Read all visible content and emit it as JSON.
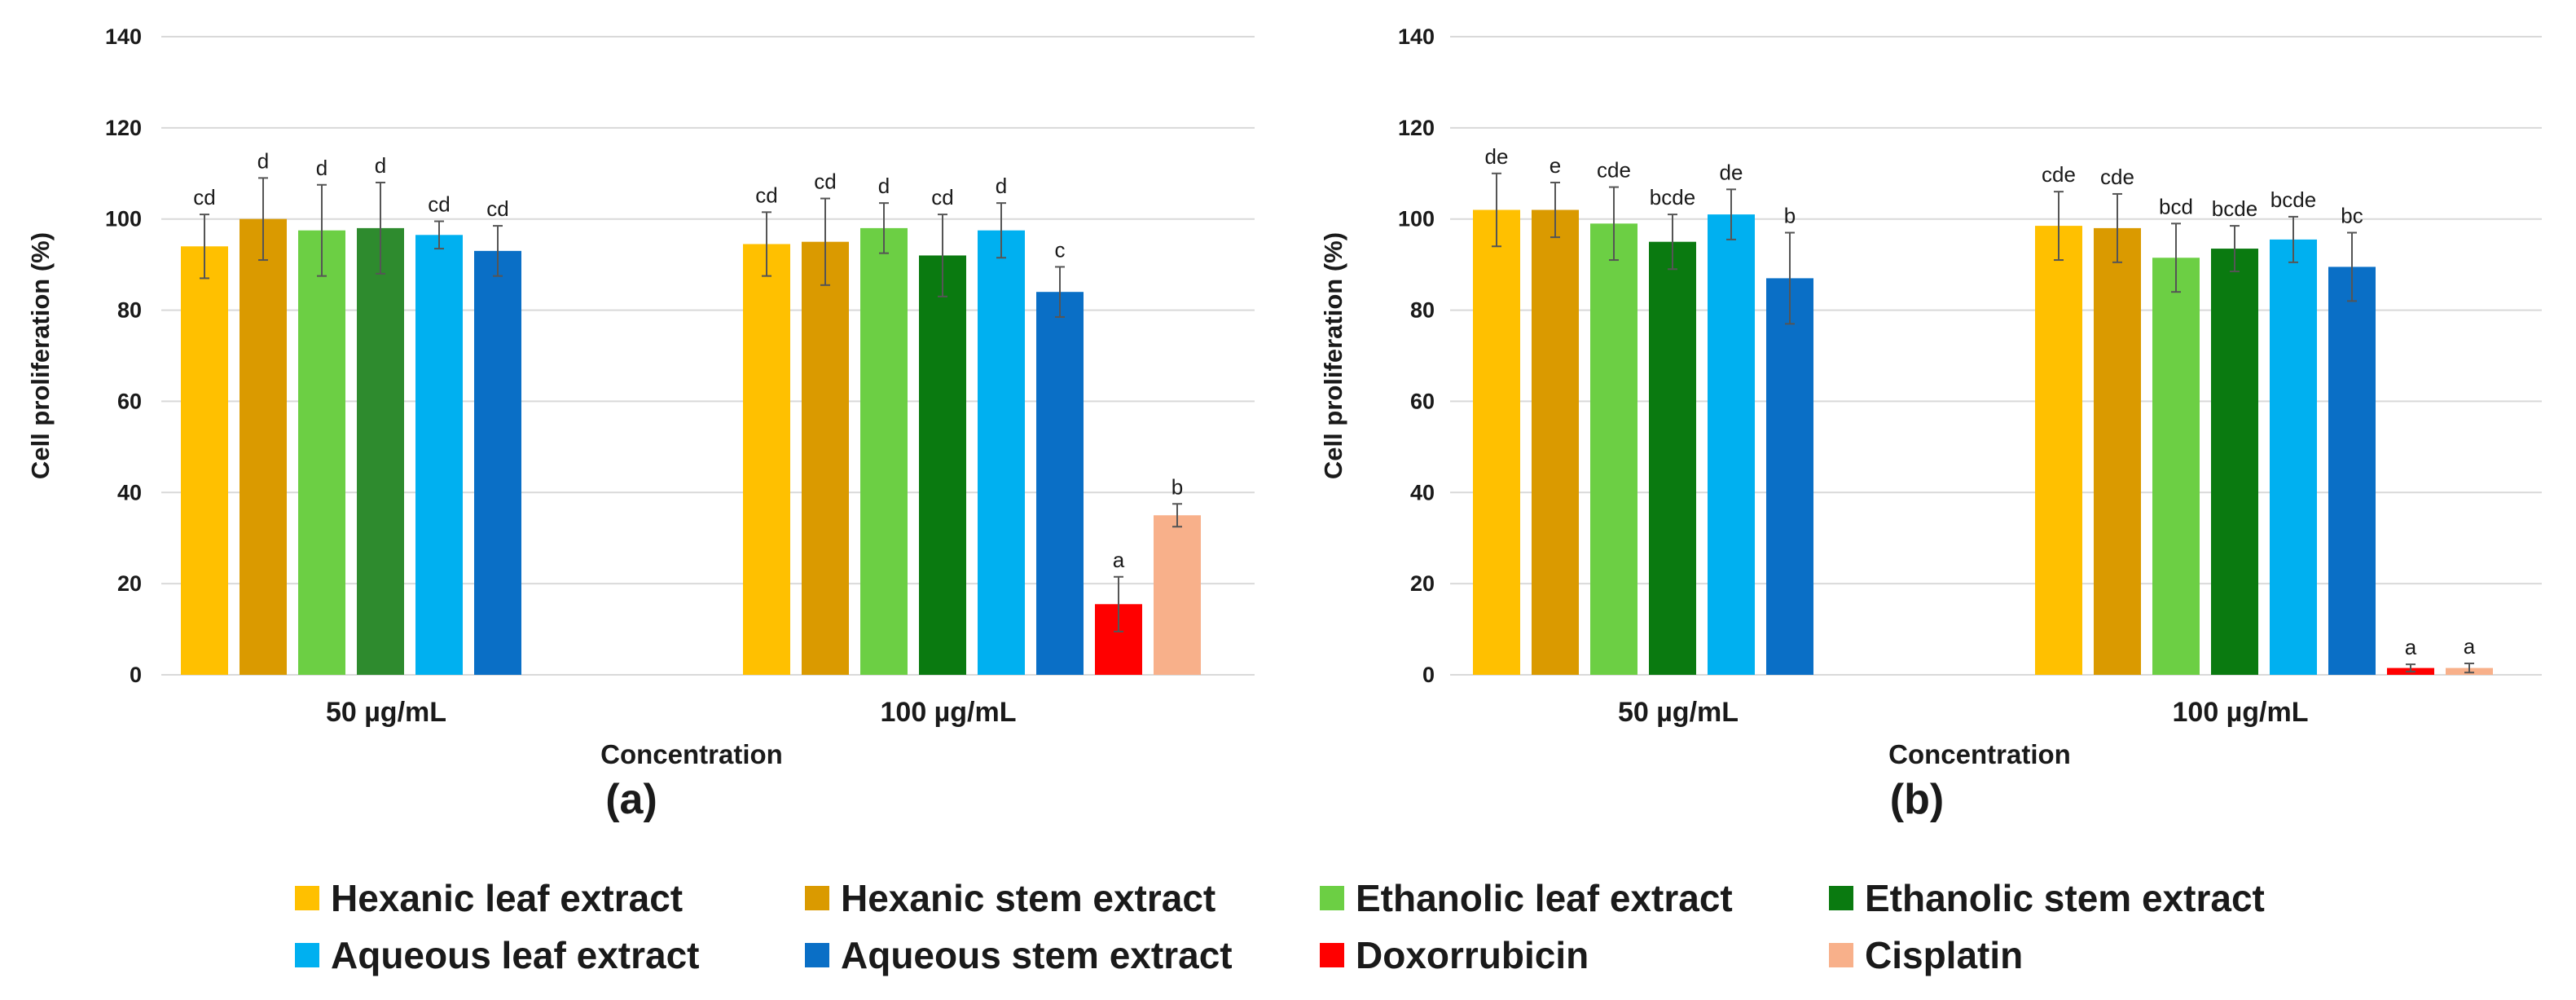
{
  "chart_data": [
    {
      "type": "bar",
      "panel": "(a)",
      "title": "",
      "xlabel": "Concentration",
      "ylabel": "Cell proliferation (%)",
      "ylim": [
        0,
        140
      ],
      "yticks": [
        0,
        20,
        40,
        60,
        80,
        100,
        120,
        140
      ],
      "grid": true,
      "categories": [
        "50 µg/mL",
        "100 µg/mL"
      ],
      "series": [
        {
          "name": "Hexanic leaf extract",
          "values": [
            94,
            94.5
          ],
          "errors": [
            7,
            7
          ],
          "labels": [
            "cd",
            "cd"
          ]
        },
        {
          "name": "Hexanic stem extract",
          "values": [
            100,
            95
          ],
          "errors": [
            9,
            9.5
          ],
          "labels": [
            "d",
            "cd"
          ]
        },
        {
          "name": "Ethanolic leaf extract",
          "values": [
            97.5,
            98
          ],
          "errors": [
            10,
            5.5
          ],
          "labels": [
            "d",
            "d"
          ]
        },
        {
          "name": "Ethanolic stem extract",
          "values": [
            98,
            92
          ],
          "errors": [
            10,
            9
          ],
          "labels": [
            "d",
            "cd"
          ]
        },
        {
          "name": "Aqueous leaf extract",
          "values": [
            96.5,
            97.5
          ],
          "errors": [
            3,
            6
          ],
          "labels": [
            "cd",
            "d"
          ]
        },
        {
          "name": "Aqueous stem extract",
          "values": [
            93,
            84
          ],
          "errors": [
            5.5,
            5.5
          ],
          "labels": [
            "cd",
            "c"
          ]
        },
        {
          "name": "Doxorrubicin",
          "values": [
            null,
            15.5
          ],
          "errors": [
            null,
            6
          ],
          "labels": [
            null,
            "a"
          ]
        },
        {
          "name": "Cisplatin",
          "values": [
            null,
            35
          ],
          "errors": [
            null,
            2.5
          ],
          "labels": [
            null,
            "b"
          ]
        }
      ]
    },
    {
      "type": "bar",
      "panel": "(b)",
      "title": "",
      "xlabel": "Concentration",
      "ylabel": "Cell proliferation (%)",
      "ylim": [
        0,
        140
      ],
      "yticks": [
        0,
        20,
        40,
        60,
        80,
        100,
        120,
        140
      ],
      "grid": true,
      "categories": [
        "50 µg/mL",
        "100 µg/mL"
      ],
      "series": [
        {
          "name": "Hexanic leaf extract",
          "values": [
            102,
            98.5
          ],
          "errors": [
            8,
            7.5
          ],
          "labels": [
            "de",
            "cde"
          ]
        },
        {
          "name": "Hexanic stem extract",
          "values": [
            102,
            98
          ],
          "errors": [
            6,
            7.5
          ],
          "labels": [
            "e",
            "cde"
          ]
        },
        {
          "name": "Ethanolic leaf extract",
          "values": [
            99,
            91.5
          ],
          "errors": [
            8,
            7.5
          ],
          "labels": [
            "cde",
            "bcd"
          ]
        },
        {
          "name": "Ethanolic stem extract",
          "values": [
            95,
            93.5
          ],
          "errors": [
            6,
            5
          ],
          "labels": [
            "bcde",
            "bcde"
          ]
        },
        {
          "name": "Aqueous leaf extract",
          "values": [
            101,
            95.5
          ],
          "errors": [
            5.5,
            5
          ],
          "labels": [
            "de",
            "bcde"
          ]
        },
        {
          "name": "Aqueous stem extract",
          "values": [
            87,
            89.5
          ],
          "errors": [
            10,
            7.5
          ],
          "labels": [
            "b",
            "bc"
          ]
        },
        {
          "name": "Doxorrubicin",
          "values": [
            null,
            1.5
          ],
          "errors": [
            null,
            0.8
          ],
          "labels": [
            null,
            "a"
          ]
        },
        {
          "name": "Cisplatin",
          "values": [
            null,
            1.5
          ],
          "errors": [
            null,
            1
          ],
          "labels": [
            null,
            "a"
          ]
        }
      ]
    }
  ],
  "colors": {
    "Hexanic leaf extract": "#FFC000",
    "Hexanic stem extract": "#DA9A00",
    "Ethanolic leaf extract": "#6CCF44",
    "Ethanolic stem extract": "#0A7A10",
    "Aqueous leaf extract": "#00B0F0",
    "Aqueous stem extract": "#0A6FC6",
    "Doxorrubicin": "#FF0000",
    "Cisplatin": "#F8B08A",
    "ethanolic_stem_panel_a": "#2E8B2E",
    "gridline": "#d9d9d9",
    "error_bar": "#555555",
    "text": "#1a1a1a"
  },
  "legend": [
    {
      "label": "Hexanic leaf extract",
      "color": "#FFC000"
    },
    {
      "label": "Hexanic stem extract",
      "color": "#DA9A00"
    },
    {
      "label": "Ethanolic leaf extract",
      "color": "#6CCF44"
    },
    {
      "label": "Ethanolic stem extract",
      "color": "#0A7A10"
    },
    {
      "label": "Aqueous leaf extract",
      "color": "#00B0F0"
    },
    {
      "label": "Aqueous stem extract",
      "color": "#0A6FC6"
    },
    {
      "label": "Doxorrubicin",
      "color": "#FF0000"
    },
    {
      "label": "Cisplatin",
      "color": "#F8B08A"
    }
  ]
}
